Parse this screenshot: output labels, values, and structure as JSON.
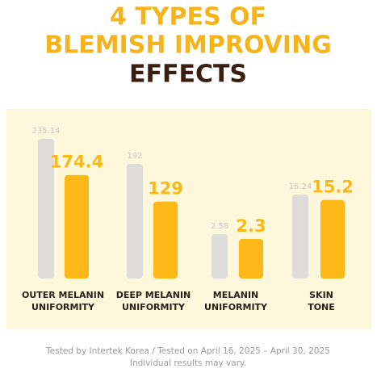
{
  "chart_data": {
    "type": "bar",
    "title_lines": [
      "4 TYPES OF",
      "BLEMISH IMPROVING",
      "EFFECTS"
    ],
    "title_colors": [
      "#f5b41c",
      "#f5b41c",
      "#3a1f10"
    ],
    "categories": [
      [
        "OUTER MELANIN",
        "UNIFORMITY"
      ],
      [
        "DEEP MELANIN",
        "UNIFORMITY"
      ],
      [
        "MELANIN",
        "UNIFORMITY"
      ],
      [
        "SKIN",
        "TONE"
      ]
    ],
    "series": [
      {
        "color": "#dddcd8",
        "values": [
          235.14,
          192,
          2.58,
          16.24
        ]
      },
      {
        "color": "#fbb817",
        "values": [
          174.4,
          129,
          2.3,
          15.2
        ]
      }
    ],
    "footnote": [
      "Tested by Intertek Korea / Tested on April 16, 2025 – April 30, 2025",
      "Individual results may vary."
    ]
  }
}
